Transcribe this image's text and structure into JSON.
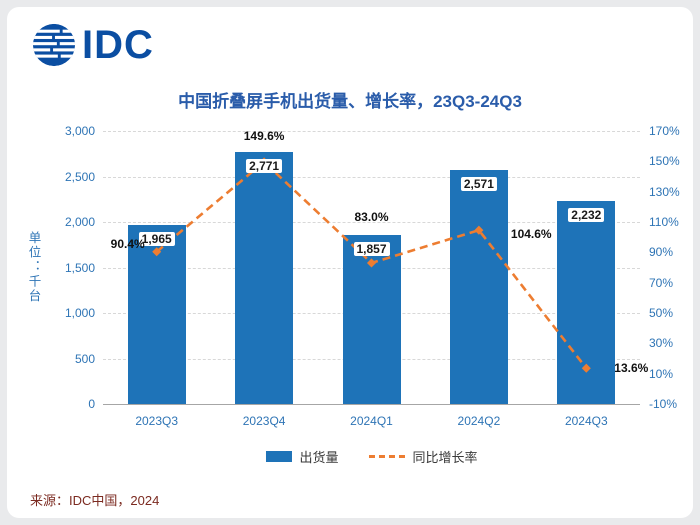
{
  "logo": {
    "text": "IDC"
  },
  "title": "中国折叠屏手机出货量、增长率，23Q3-24Q3",
  "source": "来源：IDC中国，2024",
  "colors": {
    "bar": "#1e73b8",
    "line": "#ed7d31",
    "title_text": "#2a5caa",
    "axis_text": "#2e74b5",
    "grid": "#d8d8d8",
    "axis_line": "#a6a6a6",
    "logo_blue": "#0b4ea2",
    "source_text": "#7b2a20"
  },
  "chart_data": {
    "type": "combo",
    "subtypes": [
      "bar",
      "line"
    ],
    "title": "中国折叠屏手机出货量、增长率，23Q3-24Q3",
    "categories": [
      "2023Q3",
      "2023Q4",
      "2024Q1",
      "2024Q2",
      "2024Q3"
    ],
    "series": [
      {
        "name": "出货量",
        "type": "bar",
        "axis": "left",
        "values": [
          1965,
          2771,
          1857,
          2571,
          2232
        ],
        "labels": [
          "1,965",
          "2,771",
          "1,857",
          "2,571",
          "2,232"
        ]
      },
      {
        "name": "同比增长率",
        "type": "line",
        "style": "dashed",
        "axis": "right",
        "values": [
          90.4,
          149.6,
          83.0,
          104.6,
          13.6
        ],
        "labels": [
          "90.4%",
          "149.6%",
          "83.0%",
          "104.6%",
          "13.6%"
        ]
      }
    ],
    "left_axis": {
      "title": "单位：千台",
      "min": 0,
      "max": 3000,
      "step": 500,
      "tick_labels": [
        "3,000",
        "2,500",
        "2,000",
        "1,500",
        "1,000",
        "500",
        "0"
      ]
    },
    "right_axis": {
      "min": -10,
      "max": 170,
      "step": 20,
      "tick_labels": [
        "170%",
        "150%",
        "130%",
        "110%",
        "90%",
        "70%",
        "50%",
        "30%",
        "10%",
        "-10%"
      ]
    },
    "legend": {
      "position": "bottom",
      "items": [
        "出货量",
        "同比增长率"
      ]
    },
    "grid": "horizontal-dashed"
  }
}
